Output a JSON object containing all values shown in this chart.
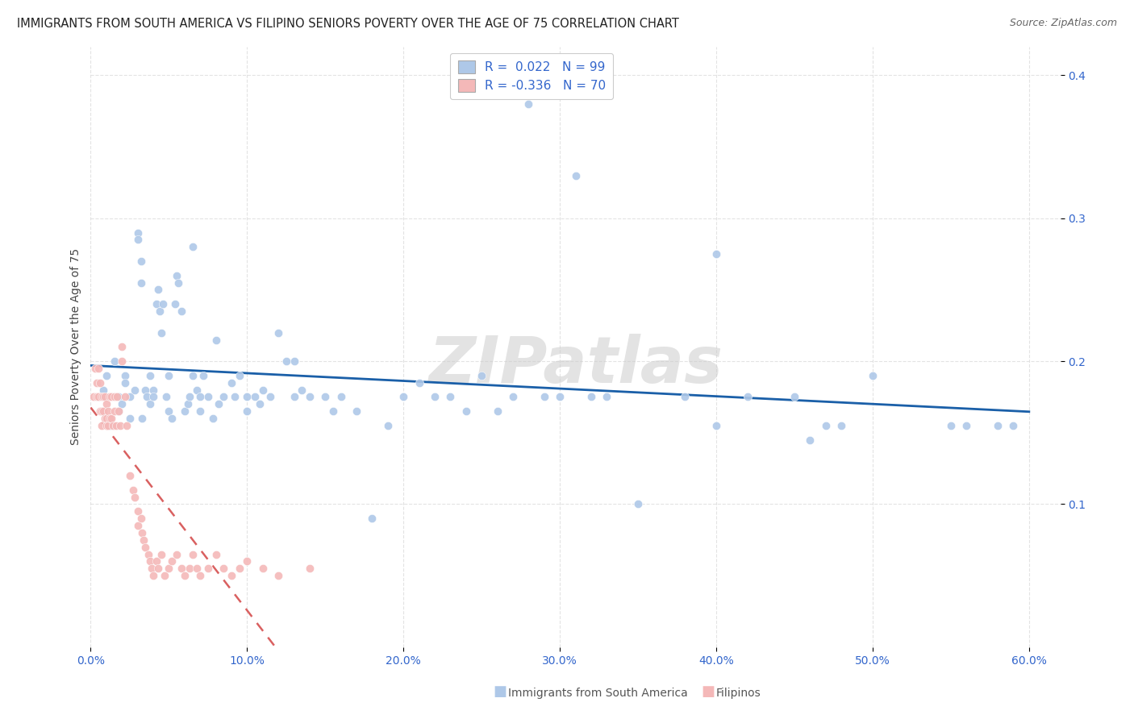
{
  "title": "IMMIGRANTS FROM SOUTH AMERICA VS FILIPINO SENIORS POVERTY OVER THE AGE OF 75 CORRELATION CHART",
  "source": "Source: ZipAtlas.com",
  "ylabel": "Seniors Poverty Over the Age of 75",
  "ylim": [
    0,
    0.42
  ],
  "xlim": [
    0,
    0.62
  ],
  "yticks": [
    0.1,
    0.2,
    0.3,
    0.4
  ],
  "ytick_labels": [
    "10.0%",
    "20.0%",
    "30.0%",
    "40.0%"
  ],
  "xticks": [
    0.0,
    0.1,
    0.2,
    0.3,
    0.4,
    0.5,
    0.6
  ],
  "xtick_labels": [
    "0.0%",
    "10.0%",
    "20.0%",
    "30.0%",
    "40.0%",
    "50.0%",
    "60.0%"
  ],
  "blue_color": "#aec8e8",
  "pink_color": "#f4b8b8",
  "blue_line_color": "#1a5fa8",
  "pink_line_color": "#d96060",
  "watermark": "ZIPatlas",
  "blue_dots": [
    [
      0.005,
      0.175
    ],
    [
      0.008,
      0.18
    ],
    [
      0.01,
      0.19
    ],
    [
      0.012,
      0.155
    ],
    [
      0.015,
      0.2
    ],
    [
      0.018,
      0.175
    ],
    [
      0.018,
      0.165
    ],
    [
      0.02,
      0.17
    ],
    [
      0.022,
      0.19
    ],
    [
      0.022,
      0.185
    ],
    [
      0.025,
      0.16
    ],
    [
      0.025,
      0.175
    ],
    [
      0.028,
      0.18
    ],
    [
      0.03,
      0.29
    ],
    [
      0.03,
      0.285
    ],
    [
      0.032,
      0.27
    ],
    [
      0.032,
      0.255
    ],
    [
      0.033,
      0.16
    ],
    [
      0.035,
      0.18
    ],
    [
      0.036,
      0.175
    ],
    [
      0.038,
      0.19
    ],
    [
      0.038,
      0.17
    ],
    [
      0.04,
      0.18
    ],
    [
      0.04,
      0.175
    ],
    [
      0.042,
      0.24
    ],
    [
      0.043,
      0.25
    ],
    [
      0.044,
      0.235
    ],
    [
      0.045,
      0.22
    ],
    [
      0.046,
      0.24
    ],
    [
      0.048,
      0.175
    ],
    [
      0.05,
      0.19
    ],
    [
      0.05,
      0.165
    ],
    [
      0.052,
      0.16
    ],
    [
      0.054,
      0.24
    ],
    [
      0.055,
      0.26
    ],
    [
      0.056,
      0.255
    ],
    [
      0.058,
      0.235
    ],
    [
      0.06,
      0.165
    ],
    [
      0.062,
      0.17
    ],
    [
      0.063,
      0.175
    ],
    [
      0.065,
      0.28
    ],
    [
      0.065,
      0.19
    ],
    [
      0.068,
      0.18
    ],
    [
      0.07,
      0.175
    ],
    [
      0.07,
      0.165
    ],
    [
      0.072,
      0.19
    ],
    [
      0.075,
      0.175
    ],
    [
      0.078,
      0.16
    ],
    [
      0.08,
      0.215
    ],
    [
      0.082,
      0.17
    ],
    [
      0.085,
      0.175
    ],
    [
      0.09,
      0.185
    ],
    [
      0.092,
      0.175
    ],
    [
      0.095,
      0.19
    ],
    [
      0.1,
      0.175
    ],
    [
      0.1,
      0.165
    ],
    [
      0.105,
      0.175
    ],
    [
      0.108,
      0.17
    ],
    [
      0.11,
      0.18
    ],
    [
      0.115,
      0.175
    ],
    [
      0.12,
      0.22
    ],
    [
      0.125,
      0.2
    ],
    [
      0.13,
      0.2
    ],
    [
      0.13,
      0.175
    ],
    [
      0.135,
      0.18
    ],
    [
      0.14,
      0.175
    ],
    [
      0.15,
      0.175
    ],
    [
      0.155,
      0.165
    ],
    [
      0.16,
      0.175
    ],
    [
      0.17,
      0.165
    ],
    [
      0.18,
      0.09
    ],
    [
      0.19,
      0.155
    ],
    [
      0.2,
      0.175
    ],
    [
      0.21,
      0.185
    ],
    [
      0.22,
      0.175
    ],
    [
      0.23,
      0.175
    ],
    [
      0.24,
      0.165
    ],
    [
      0.25,
      0.19
    ],
    [
      0.26,
      0.165
    ],
    [
      0.27,
      0.175
    ],
    [
      0.28,
      0.38
    ],
    [
      0.29,
      0.175
    ],
    [
      0.3,
      0.175
    ],
    [
      0.31,
      0.33
    ],
    [
      0.32,
      0.175
    ],
    [
      0.33,
      0.175
    ],
    [
      0.35,
      0.1
    ],
    [
      0.38,
      0.175
    ],
    [
      0.4,
      0.155
    ],
    [
      0.4,
      0.275
    ],
    [
      0.42,
      0.175
    ],
    [
      0.45,
      0.175
    ],
    [
      0.46,
      0.145
    ],
    [
      0.47,
      0.155
    ],
    [
      0.48,
      0.155
    ],
    [
      0.5,
      0.19
    ],
    [
      0.55,
      0.155
    ],
    [
      0.56,
      0.155
    ],
    [
      0.58,
      0.155
    ],
    [
      0.59,
      0.155
    ]
  ],
  "pink_dots": [
    [
      0.002,
      0.175
    ],
    [
      0.003,
      0.195
    ],
    [
      0.004,
      0.185
    ],
    [
      0.004,
      0.175
    ],
    [
      0.005,
      0.195
    ],
    [
      0.005,
      0.175
    ],
    [
      0.006,
      0.185
    ],
    [
      0.006,
      0.165
    ],
    [
      0.007,
      0.175
    ],
    [
      0.007,
      0.165
    ],
    [
      0.007,
      0.155
    ],
    [
      0.008,
      0.175
    ],
    [
      0.008,
      0.165
    ],
    [
      0.009,
      0.175
    ],
    [
      0.009,
      0.16
    ],
    [
      0.01,
      0.17
    ],
    [
      0.01,
      0.16
    ],
    [
      0.01,
      0.155
    ],
    [
      0.011,
      0.165
    ],
    [
      0.011,
      0.155
    ],
    [
      0.012,
      0.175
    ],
    [
      0.012,
      0.16
    ],
    [
      0.013,
      0.175
    ],
    [
      0.013,
      0.16
    ],
    [
      0.014,
      0.155
    ],
    [
      0.015,
      0.175
    ],
    [
      0.015,
      0.165
    ],
    [
      0.016,
      0.155
    ],
    [
      0.017,
      0.175
    ],
    [
      0.018,
      0.165
    ],
    [
      0.019,
      0.155
    ],
    [
      0.02,
      0.2
    ],
    [
      0.02,
      0.21
    ],
    [
      0.022,
      0.175
    ],
    [
      0.023,
      0.155
    ],
    [
      0.025,
      0.12
    ],
    [
      0.027,
      0.11
    ],
    [
      0.028,
      0.105
    ],
    [
      0.03,
      0.095
    ],
    [
      0.03,
      0.085
    ],
    [
      0.032,
      0.09
    ],
    [
      0.033,
      0.08
    ],
    [
      0.034,
      0.075
    ],
    [
      0.035,
      0.07
    ],
    [
      0.037,
      0.065
    ],
    [
      0.038,
      0.06
    ],
    [
      0.039,
      0.055
    ],
    [
      0.04,
      0.05
    ],
    [
      0.042,
      0.06
    ],
    [
      0.043,
      0.055
    ],
    [
      0.045,
      0.065
    ],
    [
      0.047,
      0.05
    ],
    [
      0.05,
      0.055
    ],
    [
      0.052,
      0.06
    ],
    [
      0.055,
      0.065
    ],
    [
      0.058,
      0.055
    ],
    [
      0.06,
      0.05
    ],
    [
      0.063,
      0.055
    ],
    [
      0.065,
      0.065
    ],
    [
      0.068,
      0.055
    ],
    [
      0.07,
      0.05
    ],
    [
      0.075,
      0.055
    ],
    [
      0.08,
      0.065
    ],
    [
      0.085,
      0.055
    ],
    [
      0.09,
      0.05
    ],
    [
      0.095,
      0.055
    ],
    [
      0.1,
      0.06
    ],
    [
      0.11,
      0.055
    ],
    [
      0.12,
      0.05
    ],
    [
      0.14,
      0.055
    ]
  ]
}
